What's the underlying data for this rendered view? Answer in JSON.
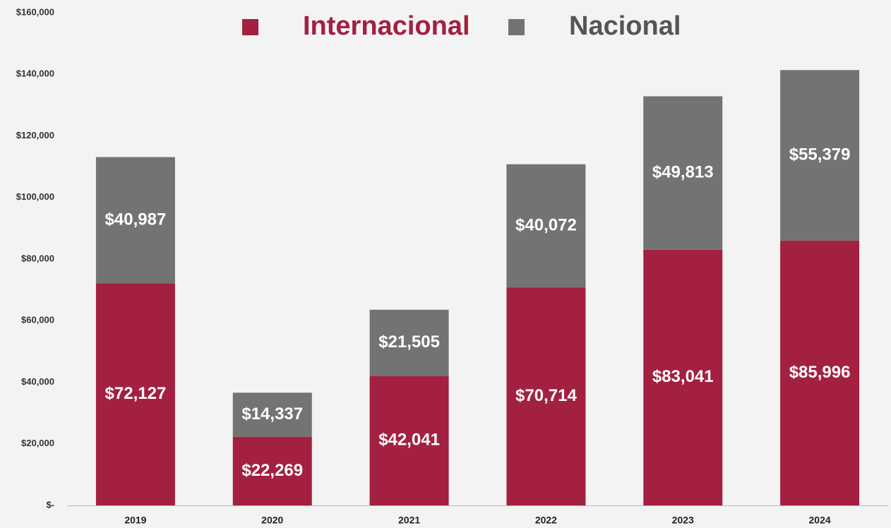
{
  "chart_data": {
    "type": "stacked_bar",
    "categories": [
      "2019",
      "2020",
      "2021",
      "2022",
      "2023",
      "2024"
    ],
    "series": [
      {
        "name": "Internacional",
        "color": "#a32040",
        "values": [
          72127,
          22269,
          42041,
          70714,
          83041,
          85996
        ],
        "value_labels": [
          "$72,127",
          "$22,269",
          "$42,041",
          "$70,714",
          "$83,041",
          "$85,996"
        ]
      },
      {
        "name": "Nacional",
        "color": "#737373",
        "values": [
          40987,
          14337,
          21505,
          40072,
          49813,
          55379
        ],
        "value_labels": [
          "$40,987",
          "$14,337",
          "$21,505",
          "$40,072",
          "$49,813",
          "$55,379"
        ]
      }
    ],
    "ylim": [
      0,
      160000
    ],
    "yticks": [
      {
        "value": 0,
        "label": "$-"
      },
      {
        "value": 20000,
        "label": "$20,000"
      },
      {
        "value": 40000,
        "label": "$40,000"
      },
      {
        "value": 60000,
        "label": "$60,000"
      },
      {
        "value": 80000,
        "label": "$80,000"
      },
      {
        "value": 100000,
        "label": "$100,000"
      },
      {
        "value": 120000,
        "label": "$120,000"
      },
      {
        "value": 140000,
        "label": "$140,000"
      },
      {
        "value": 160000,
        "label": "$160,000"
      }
    ],
    "grid": false,
    "legend": "top"
  }
}
